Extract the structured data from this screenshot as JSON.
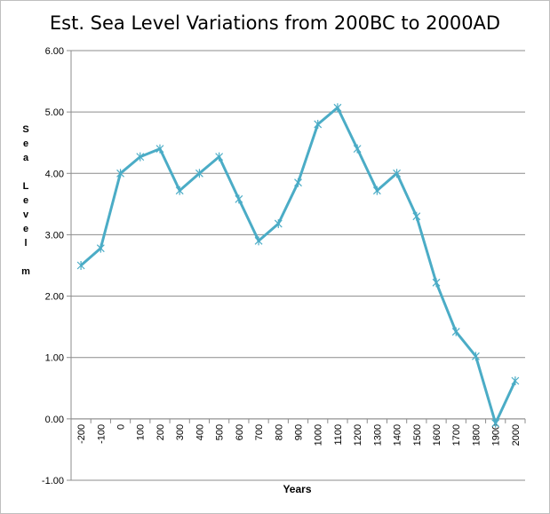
{
  "chart_data": {
    "type": "line",
    "title": "Est. Sea Level Variations from 200BC to 2000AD",
    "xlabel": "Years",
    "ylabel_letters": [
      "S",
      "e",
      "a",
      "",
      "L",
      "e",
      "v",
      "e",
      "l",
      "",
      "m"
    ],
    "ylim": [
      -1.0,
      6.0
    ],
    "yticks": [
      "6.00",
      "5.00",
      "4.00",
      "3.00",
      "2.00",
      "1.00",
      "0.00",
      "-1.00"
    ],
    "grid": true,
    "categories": [
      "-200",
      "-100",
      "0",
      "100",
      "200",
      "300",
      "400",
      "500",
      "600",
      "700",
      "800",
      "900",
      "1000",
      "1100",
      "1200",
      "1300",
      "1400",
      "1500",
      "1600",
      "1700",
      "1800",
      "1900",
      "2000"
    ],
    "series": [
      {
        "values": [
          2.5,
          2.78,
          4.0,
          4.27,
          4.4,
          3.72,
          4.0,
          4.27,
          3.58,
          2.9,
          3.18,
          3.85,
          4.8,
          5.07,
          4.4,
          3.72,
          4.0,
          3.3,
          2.22,
          1.42,
          1.02,
          -0.07,
          0.62
        ],
        "color": "#4bacc6"
      }
    ]
  }
}
